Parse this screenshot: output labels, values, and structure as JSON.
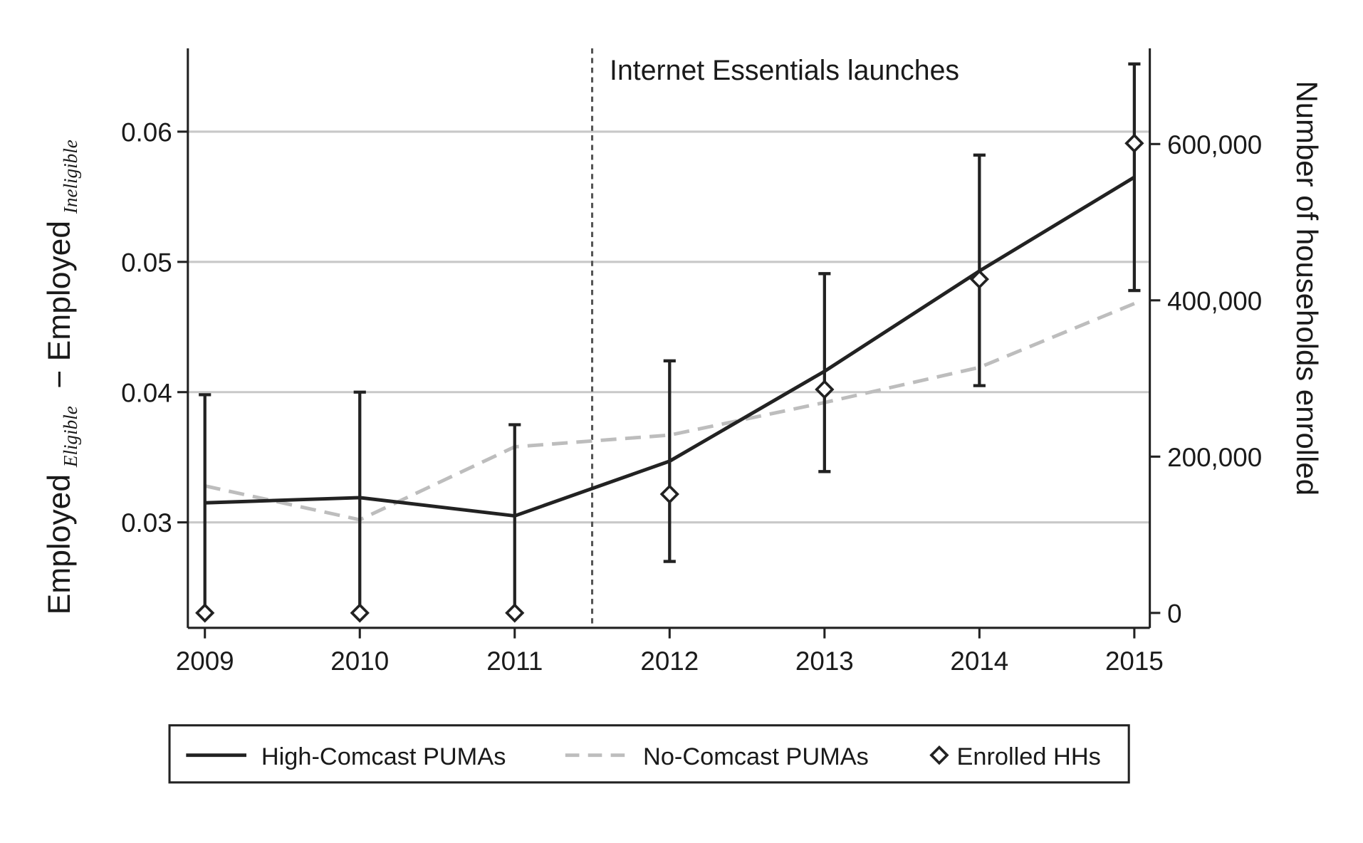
{
  "chart_data": {
    "type": "line",
    "title": "",
    "annotation": "Internet Essentials launches",
    "annotation_x": 2011.5,
    "x": [
      2009,
      2010,
      2011,
      2012,
      2013,
      2014,
      2015
    ],
    "xlim": [
      2008.89,
      2015.1
    ],
    "ylabel": {
      "a": "Employed",
      "a_sub": "Eligible",
      "b": " − Employed",
      "b_sub": "Ineligible"
    },
    "ylim": [
      0.0219,
      0.0664
    ],
    "yticks": [
      0.03,
      0.04,
      0.05,
      0.06
    ],
    "ytick_labels": [
      "0.03",
      "0.04",
      "0.05",
      "0.06"
    ],
    "y2label": "Number of households enrolled",
    "y2lim": [
      -19100,
      722500
    ],
    "y2ticks": [
      0,
      200000,
      400000,
      600000
    ],
    "y2tick_labels": [
      "0",
      "200,000",
      "400,000",
      "600,000"
    ],
    "grid": true,
    "legend_position": "bottom",
    "series": [
      {
        "name": "High-Comcast PUMAs",
        "style": "solid",
        "color": "#222222",
        "axis": "left",
        "values": [
          0.0315,
          0.0319,
          0.0305,
          0.0347,
          0.0416,
          0.0493,
          0.0565
        ],
        "ci_upper": [
          0.0398,
          0.04,
          0.0375,
          0.0424,
          0.0491,
          0.0582,
          0.0652
        ],
        "ci_lower": [
          0.0231,
          0.0231,
          0.0231,
          0.027,
          0.0339,
          0.0405,
          0.0478
        ]
      },
      {
        "name": "No-Comcast PUMAs",
        "style": "dashed",
        "color": "#bdbdbd",
        "axis": "left",
        "values": [
          0.0328,
          0.0302,
          0.0358,
          0.0367,
          0.0392,
          0.0419,
          0.0468
        ]
      },
      {
        "name": "Enrolled HHs",
        "style": "diamond-markers",
        "color": "#222222",
        "axis": "right",
        "values": [
          0,
          0,
          0,
          152000,
          286000,
          427000,
          601000
        ]
      }
    ]
  }
}
